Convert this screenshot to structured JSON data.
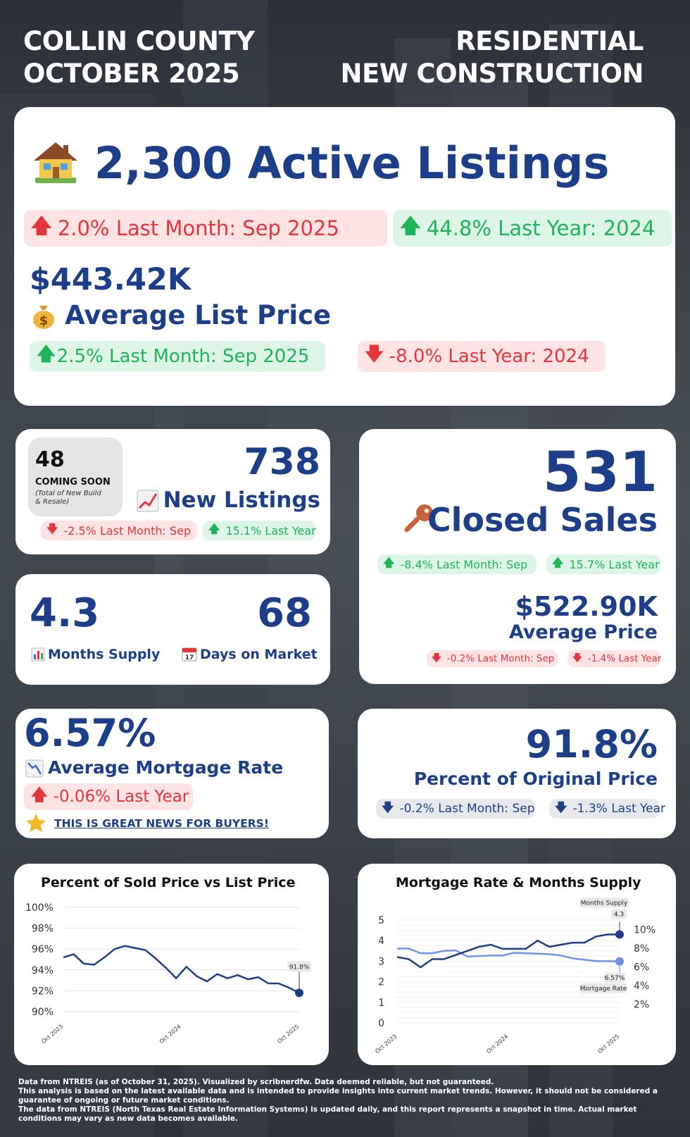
{
  "header": {
    "left_line1": "COLLIN COUNTY",
    "left_line2": "OCTOBER 2025",
    "right_line1": "RESIDENTIAL",
    "right_line2": "NEW CONSTRUCTION"
  },
  "active": {
    "value": "2,300 Active Listings",
    "last_month": "2.0% Last Month: Sep 2025",
    "last_year": "44.8% Last Year: 2024"
  },
  "list_price": {
    "value": "$443.42K",
    "label": "Average List Price",
    "last_month": "2.5% Last Month: Sep 2025",
    "last_year": "-8.0% Last Year: 2024"
  },
  "coming_soon": {
    "value": "48",
    "label": "COMING SOON",
    "note": "(Total of New Build & Resale)"
  },
  "new_listings": {
    "value": "738",
    "label": "New Listings",
    "last_month": "-2.5% Last Month: Sep",
    "last_year": "15.1% Last Year"
  },
  "closed": {
    "value": "531",
    "label": "Closed Sales",
    "last_month": "-8.4% Last Month: Sep",
    "last_year": "15.7% Last Year",
    "avg_price": "$522.90K",
    "avg_price_label": "Average Price",
    "price_last_month": "-0.2% Last Month: Sep",
    "price_last_year": "-1.4% Last Year"
  },
  "supply": {
    "months_value": "4.3",
    "months_label": "Months Supply",
    "dom_value": "68",
    "dom_label": "Days on Market"
  },
  "mortgage": {
    "value": "6.57%",
    "label": "Average Mortgage Rate",
    "last_year": "-0.06% Last Year",
    "news": "THIS IS GREAT NEWS FOR BUYERS!"
  },
  "original_price": {
    "value": "91.8%",
    "label": "Percent of Original Price",
    "last_month": "-0.2% Last Month: Sep",
    "last_year": "-1.3% Last Year"
  },
  "icons": {
    "house": "house-icon",
    "money": "money-bag-icon",
    "chart_up": "chart-increasing-icon",
    "key": "key-icon",
    "bar_chart": "bar-chart-icon",
    "calendar": "calendar-icon",
    "chart_down": "chart-decreasing-icon",
    "star": "star-icon"
  },
  "colors": {
    "navy": "#1d3f8a",
    "red": "#e5363b",
    "green": "#1fb45a",
    "red_bg": "#fde3e3",
    "green_bg": "#dcf5e6"
  },
  "chart_data": [
    {
      "type": "line",
      "title": "Percent of Sold Price vs List Price",
      "x_labels": [
        "Oct 2023",
        "Oct 2024",
        "Oct 2025"
      ],
      "y_ticks": [
        "100%",
        "98%",
        "96%",
        "94%",
        "92%",
        "90%"
      ],
      "ylim": [
        90,
        100
      ],
      "series": [
        {
          "name": "Percent of Sold Price vs List Price",
          "color": "#1d3f8a",
          "values": [
            95.2,
            95.5,
            94.6,
            94.5,
            95.2,
            96.0,
            96.3,
            96.1,
            95.9,
            95.1,
            94.2,
            93.2,
            94.3,
            93.4,
            92.9,
            93.6,
            93.2,
            93.5,
            93.1,
            93.3,
            92.7,
            92.7,
            92.3,
            91.8
          ]
        }
      ],
      "end_label": "91.8%"
    },
    {
      "type": "line",
      "title": "Mortgage Rate & Months Supply",
      "x_labels": [
        "Oct 2023",
        "Oct 2024",
        "Oct 2025"
      ],
      "y_left_ticks": [
        "5",
        "4",
        "3",
        "2",
        "1",
        "0"
      ],
      "y_right_ticks": [
        "10%",
        "8%",
        "6%",
        "4%",
        "2%"
      ],
      "ylim_left": [
        0,
        5
      ],
      "ylim_right": [
        0,
        11
      ],
      "series": [
        {
          "name": "Months Supply",
          "axis": "left",
          "color": "#1d3f8a",
          "values": [
            3.2,
            3.1,
            2.7,
            3.1,
            3.1,
            3.3,
            3.5,
            3.7,
            3.8,
            3.6,
            3.6,
            3.6,
            4.0,
            3.7,
            3.8,
            3.9,
            3.9,
            4.2,
            4.3,
            4.3
          ]
        },
        {
          "name": "Mortgage Rate",
          "axis": "right",
          "color": "#6c93e8",
          "values": [
            7.95,
            7.95,
            7.45,
            7.45,
            7.7,
            7.75,
            7.1,
            7.15,
            7.2,
            7.2,
            7.5,
            7.45,
            7.4,
            7.35,
            7.2,
            6.9,
            6.75,
            6.6,
            6.6,
            6.57
          ]
        }
      ],
      "end_label_left_title": "Months Supply",
      "end_label_left_value": "4.3",
      "end_label_right_value": "6.57%",
      "end_label_right_title": "Mortgage Rate"
    }
  ],
  "footer": {
    "line1": "Data from NTREIS (as of October 31, 2025). Visualized by scribnerdfw. Data deemed reliable, but not guaranteed.",
    "line2": "This analysis is based on the latest available data and is intended to provide insights into current market trends. However, it should not be considered a guarantee of ongoing or future market conditions.",
    "line3": "The data from NTREIS (North Texas Real Estate Information Systems) is updated daily, and this report represents a snapshot in time. Actual market conditions may vary as new data becomes available."
  }
}
